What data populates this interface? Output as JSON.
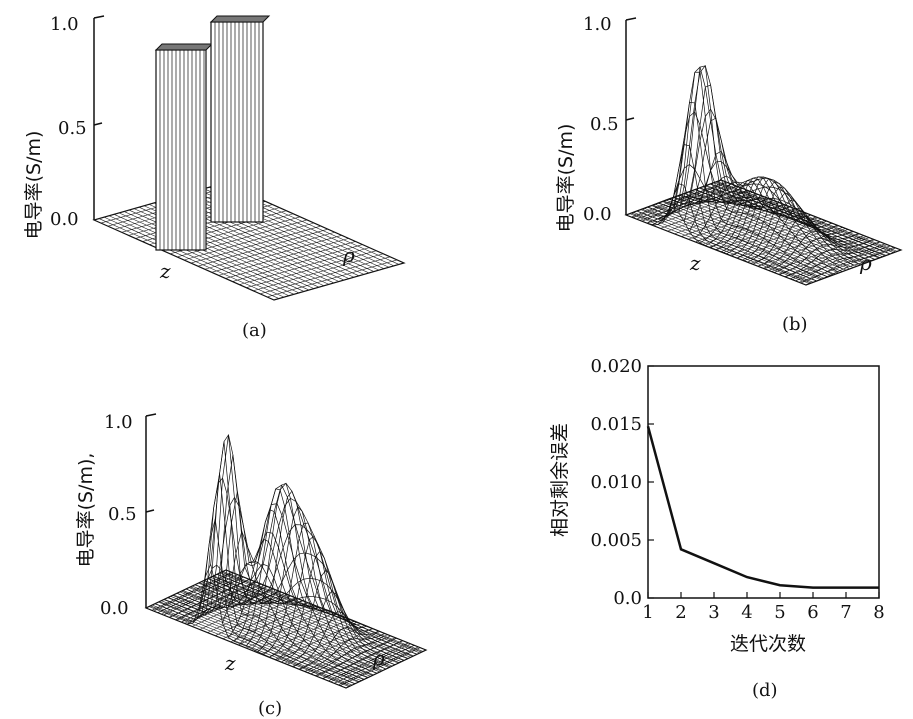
{
  "panels": {
    "a": {
      "caption": "(a)",
      "ylabel": "电导率(S/m)",
      "yticks": [
        "1.0",
        "0.5",
        "0.0"
      ],
      "axis_z": "z",
      "axis_rho": "ρ"
    },
    "b": {
      "caption": "(b)",
      "ylabel": "电导率(S/m)",
      "yticks": [
        "1.0",
        "0.5",
        "0.0"
      ],
      "axis_z": "z",
      "axis_rho": "ρ"
    },
    "c": {
      "caption": "(c)",
      "ylabel": "电导率(S/m),",
      "yticks": [
        "1.0",
        "0.5",
        "0.0"
      ],
      "axis_z": "z",
      "axis_rho": "ρ"
    },
    "d": {
      "caption": "(d)",
      "ylabel": "相对剩余误差",
      "xlabel": "迭代次数"
    }
  },
  "chart_data": [
    {
      "panel": "a",
      "type": "surface",
      "description_values": "two rectangular blocks of conductivity 1.0 on a zero background",
      "ylim": [
        0,
        1.0
      ],
      "peaks": [
        1.0,
        1.0
      ]
    },
    {
      "panel": "b",
      "type": "surface",
      "ylim": [
        0,
        1.0
      ],
      "peaks": [
        0.8,
        0.3
      ]
    },
    {
      "panel": "c",
      "type": "surface",
      "ylim": [
        0,
        1.0
      ],
      "peaks": [
        1.0,
        0.67
      ]
    },
    {
      "panel": "d",
      "type": "line",
      "x": [
        1,
        2,
        3,
        4,
        5,
        6,
        7,
        8
      ],
      "values": [
        0.0148,
        0.0042,
        0.003,
        0.0018,
        0.0011,
        0.0009,
        0.0009,
        0.0009
      ],
      "xlabel": "迭代次数",
      "ylabel": "相对剩余误差",
      "xlim": [
        1,
        8
      ],
      "ylim": [
        0.0,
        0.02
      ],
      "xticks": [
        "1",
        "2",
        "3",
        "4",
        "5",
        "6",
        "7",
        "8"
      ],
      "yticks": [
        "0.020",
        "0.015",
        "0.010",
        "0.005",
        "0.0"
      ]
    }
  ]
}
